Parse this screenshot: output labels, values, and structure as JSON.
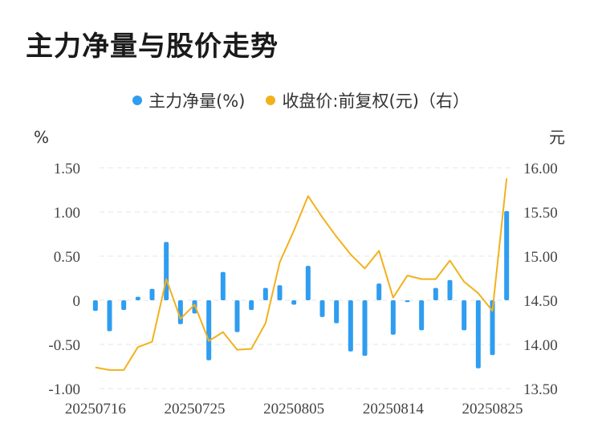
{
  "page": {
    "title": "主力净量与股价走势"
  },
  "colors": {
    "bar": "#2f9df0",
    "line": "#f2b11c",
    "grid": "#e6e6e6"
  },
  "chart_data": {
    "type": "bar+line",
    "legend": [
      {
        "name": "主力净量(%)",
        "color": "#2f9df0"
      },
      {
        "name": "收盘价:前复权(元)（右）",
        "color": "#f2b11c"
      }
    ],
    "left_axis_unit": "%",
    "right_axis_unit": "元",
    "left_ylim": [
      -1.0,
      1.5
    ],
    "right_ylim": [
      13.5,
      16.0
    ],
    "left_ticks": [
      {
        "value": 1.5,
        "label": "1.50"
      },
      {
        "value": 1.0,
        "label": "1.00"
      },
      {
        "value": 0.5,
        "label": "0.50"
      },
      {
        "value": 0.0,
        "label": "0"
      },
      {
        "value": -0.5,
        "label": "-0.50"
      },
      {
        "value": -1.0,
        "label": "-1.00"
      }
    ],
    "right_ticks": [
      {
        "value": 16.0,
        "label": "16.00"
      },
      {
        "value": 15.5,
        "label": "15.50"
      },
      {
        "value": 15.0,
        "label": "15.00"
      },
      {
        "value": 14.5,
        "label": "14.50"
      },
      {
        "value": 14.0,
        "label": "14.00"
      },
      {
        "value": 13.5,
        "label": "13.50"
      }
    ],
    "x_tick_labels": [
      {
        "index": 0,
        "label": "20250716"
      },
      {
        "index": 7,
        "label": "20250725"
      },
      {
        "index": 14,
        "label": "20250805"
      },
      {
        "index": 21,
        "label": "20250814"
      },
      {
        "index": 28,
        "label": "20250825"
      }
    ],
    "count": 30,
    "series": [
      {
        "name": "主力净量(%)",
        "axis": "left",
        "kind": "bar",
        "values": [
          -0.12,
          -0.35,
          -0.11,
          0.04,
          0.13,
          0.66,
          -0.27,
          -0.15,
          -0.68,
          0.32,
          -0.36,
          -0.11,
          0.14,
          0.17,
          -0.05,
          0.39,
          -0.19,
          -0.26,
          -0.58,
          -0.63,
          0.19,
          -0.39,
          -0.02,
          -0.34,
          0.14,
          0.23,
          -0.34,
          -0.77,
          -0.62,
          1.01
        ]
      },
      {
        "name": "收盘价:前复权(元)（右）",
        "axis": "right",
        "kind": "line",
        "values": [
          13.74,
          13.71,
          13.71,
          13.97,
          14.03,
          14.74,
          14.29,
          14.45,
          14.04,
          14.14,
          13.94,
          13.95,
          14.24,
          14.93,
          15.29,
          15.68,
          15.44,
          15.22,
          15.02,
          14.86,
          15.06,
          14.53,
          14.78,
          14.74,
          14.74,
          14.95,
          14.71,
          14.58,
          14.38,
          15.88
        ]
      }
    ]
  }
}
